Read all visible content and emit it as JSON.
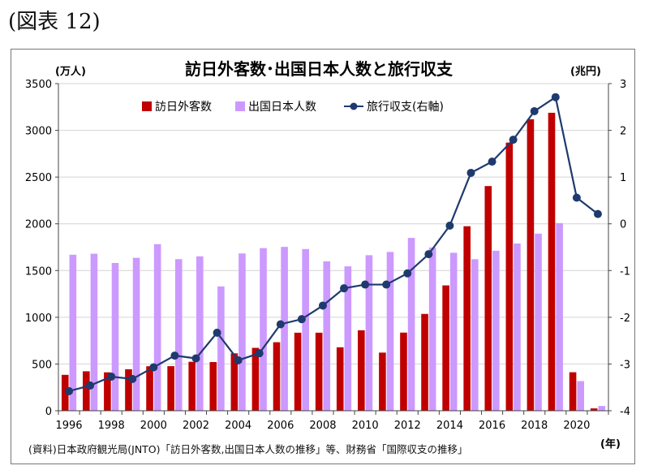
{
  "figure_label": "(図表 12)",
  "source_note": "(資料)日本政府観光局(JNTO)「訪日外客数,出国日本人数の推移」等、財務省「国際収支の推移」",
  "colors": {
    "inbound": "#c00000",
    "outbound": "#cc99ff",
    "balance": "#1f3a6e"
  },
  "chart_data": {
    "type": "bar",
    "title": "訪日外客数･出国日本人数と旅行収支",
    "ylabel": "(万人)",
    "y2label": "(兆円)",
    "xlabel": "(年)",
    "ylim": [
      0,
      3500
    ],
    "y2lim": [
      -4,
      3
    ],
    "yticks": [
      0,
      500,
      1000,
      1500,
      2000,
      2500,
      3000,
      3500
    ],
    "y2ticks": [
      -4,
      -3,
      -2,
      -1,
      0,
      1,
      2,
      3
    ],
    "x": [
      1996,
      1997,
      1998,
      1999,
      2000,
      2001,
      2002,
      2003,
      2004,
      2005,
      2006,
      2007,
      2008,
      2009,
      2010,
      2011,
      2012,
      2013,
      2014,
      2015,
      2016,
      2017,
      2018,
      2019,
      2020,
      2021
    ],
    "xtick_labels": [
      "1996",
      "1998",
      "2000",
      "2002",
      "2004",
      "2006",
      "2008",
      "2010",
      "2012",
      "2014",
      "2016",
      "2018",
      "2020"
    ],
    "grid": true,
    "legend_position": "top-left",
    "series": [
      {
        "name": "訪日外客数",
        "type": "bar",
        "axis": "left",
        "values": [
          384,
          422,
          411,
          444,
          476,
          477,
          524,
          521,
          614,
          673,
          733,
          835,
          835,
          679,
          861,
          622,
          836,
          1036,
          1341,
          1974,
          2404,
          2869,
          3119,
          3188,
          412,
          25
        ]
      },
      {
        "name": "出国日本人数",
        "type": "bar",
        "axis": "left",
        "values": [
          1669,
          1680,
          1581,
          1636,
          1782,
          1622,
          1652,
          1330,
          1683,
          1740,
          1753,
          1730,
          1599,
          1545,
          1664,
          1699,
          1849,
          1747,
          1690,
          1621,
          1712,
          1789,
          1895,
          2008,
          317,
          51
        ]
      },
      {
        "name": "旅行収支(右軸)",
        "type": "line",
        "axis": "right",
        "values": [
          -3.58,
          -3.46,
          -3.27,
          -3.32,
          -3.07,
          -2.82,
          -2.88,
          -2.33,
          -2.92,
          -2.77,
          -2.15,
          -2.04,
          -1.75,
          -1.38,
          -1.3,
          -1.3,
          -1.06,
          -0.65,
          -0.04,
          1.09,
          1.33,
          1.8,
          2.41,
          2.71,
          0.56,
          0.21
        ]
      }
    ]
  }
}
